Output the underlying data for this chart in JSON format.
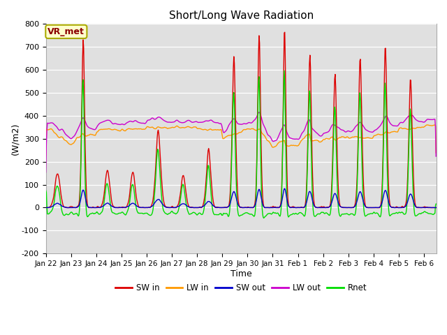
{
  "title": "Short/Long Wave Radiation",
  "xlabel": "Time",
  "ylabel": "(W/m2)",
  "ylim": [
    -200,
    800
  ],
  "annotation": "VR_met",
  "bg_color": "#e0e0e0",
  "fig_bg": "#ffffff",
  "series": {
    "SW_in": {
      "color": "#dd0000",
      "label": "SW in",
      "lw": 1.0
    },
    "LW_in": {
      "color": "#ff9900",
      "label": "LW in",
      "lw": 1.0
    },
    "SW_out": {
      "color": "#0000cc",
      "label": "SW out",
      "lw": 1.0
    },
    "LW_out": {
      "color": "#cc00cc",
      "label": "LW out",
      "lw": 1.0
    },
    "Rnet": {
      "color": "#00dd00",
      "label": "Rnet",
      "lw": 1.0
    }
  },
  "xtick_labels": [
    "Jan 22",
    "Jan 23",
    "Jan 24",
    "Jan 25",
    "Jan 26",
    "Jan 27",
    "Jan 28",
    "Jan 29",
    "Jan 30",
    "Jan 31",
    "Feb 1",
    "Feb 2",
    "Feb 3",
    "Feb 4",
    "Feb 5",
    "Feb 6"
  ],
  "xtick_positions": [
    0,
    1,
    2,
    3,
    4,
    5,
    6,
    7,
    8,
    9,
    10,
    11,
    12,
    13,
    14,
    15
  ],
  "ytick_values": [
    -200,
    -100,
    0,
    100,
    200,
    300,
    400,
    500,
    600,
    700,
    800
  ]
}
